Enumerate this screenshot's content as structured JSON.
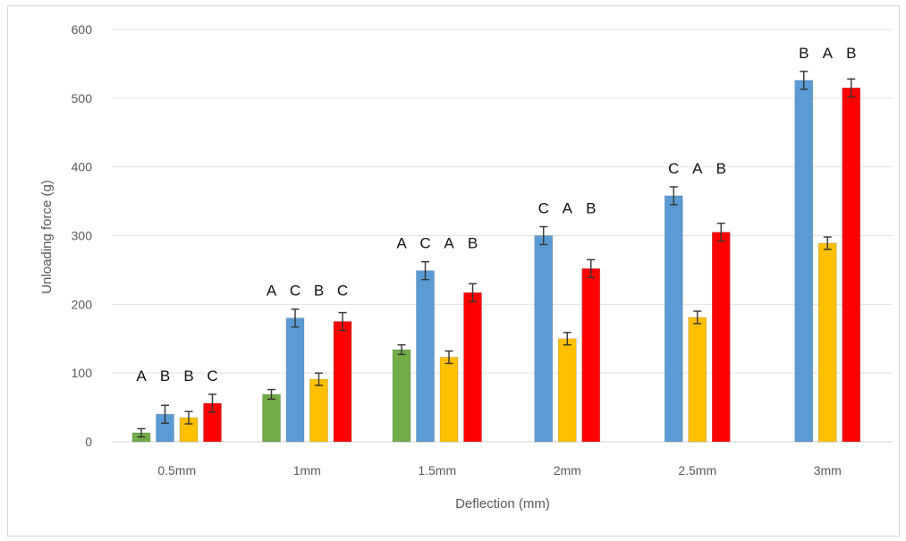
{
  "chart_data": {
    "type": "bar",
    "title": "",
    "xlabel": "Deflection (mm)",
    "ylabel": "Unloading force (g)",
    "ylim": [
      0,
      600
    ],
    "yticks": [
      0,
      100,
      200,
      300,
      400,
      500,
      600
    ],
    "grid": true,
    "legend": "none",
    "categories": [
      "0.5mm",
      "1mm",
      "1.5mm",
      "2mm",
      "2.5mm",
      "3mm"
    ],
    "series": [
      {
        "color": "#70ad47",
        "values": [
          13,
          69,
          134,
          null,
          null,
          null
        ],
        "errors": [
          6,
          7,
          7,
          null,
          null,
          null
        ]
      },
      {
        "color": "#5b9bd5",
        "values": [
          40,
          180,
          249,
          300,
          358,
          526
        ],
        "errors": [
          13,
          13,
          13,
          13,
          13,
          13
        ]
      },
      {
        "color": "#ffc000",
        "values": [
          35,
          91,
          123,
          150,
          181,
          289
        ],
        "errors": [
          9,
          9,
          9,
          9,
          9,
          9
        ]
      },
      {
        "color": "#ff0000",
        "values": [
          56,
          175,
          217,
          252,
          305,
          515
        ],
        "errors": [
          13,
          13,
          13,
          13,
          13,
          13
        ]
      }
    ],
    "annotations": [
      {
        "category": "0.5mm",
        "letters": [
          "A",
          "B",
          "B",
          "C"
        ]
      },
      {
        "category": "1mm",
        "letters": [
          "A",
          "C",
          "B",
          "C"
        ]
      },
      {
        "category": "1.5mm",
        "letters": [
          "A",
          "C",
          "A",
          "B"
        ]
      },
      {
        "category": "2mm",
        "letters": [
          "C",
          "A",
          "B"
        ]
      },
      {
        "category": "2.5mm",
        "letters": [
          "C",
          "A",
          "B"
        ]
      },
      {
        "category": "3mm",
        "letters": [
          "B",
          "A",
          "B"
        ]
      }
    ]
  }
}
